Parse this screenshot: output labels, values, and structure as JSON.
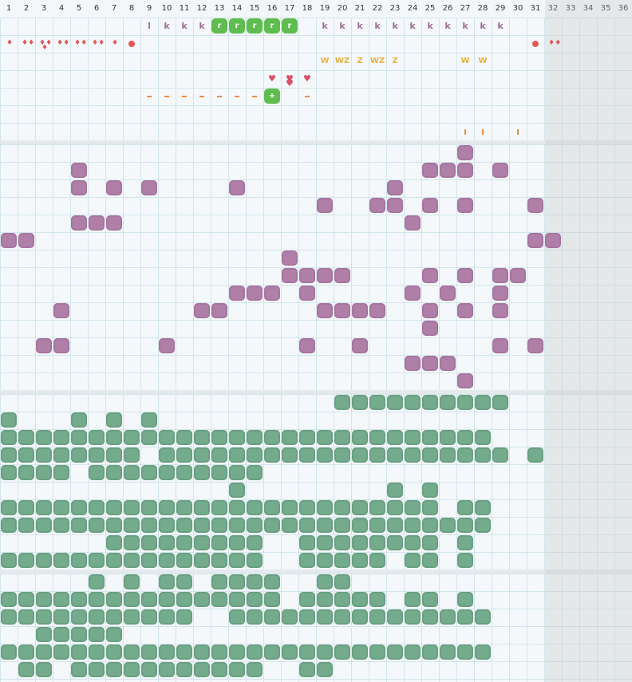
{
  "days": [
    "1",
    "2",
    "3",
    "4",
    "5",
    "6",
    "7",
    "8",
    "9",
    "10",
    "11",
    "12",
    "13",
    "14",
    "15",
    "16",
    "17",
    "18",
    "19",
    "20",
    "21",
    "22",
    "23",
    "24",
    "25",
    "26",
    "27",
    "28",
    "29",
    "30",
    "31",
    "32",
    "33",
    "34",
    "35",
    "36"
  ],
  "shaded_from_day": 32,
  "colors": {
    "purple": "#b07fa8",
    "green": "#74ab8c",
    "tag_green": "#5ebd4e",
    "orange": "#ef8b46",
    "red": "#e35757",
    "yellow": "#e8b23e"
  },
  "header_rows": {
    "k_row": [
      {
        "day": 9,
        "text": "l"
      },
      {
        "day": 10,
        "text": "k"
      },
      {
        "day": 11,
        "text": "k"
      },
      {
        "day": 12,
        "text": "k"
      },
      {
        "day": 19,
        "text": "k"
      },
      {
        "day": 20,
        "text": "k"
      },
      {
        "day": 21,
        "text": "k"
      },
      {
        "day": 22,
        "text": "k"
      },
      {
        "day": 23,
        "text": "k"
      },
      {
        "day": 24,
        "text": "k"
      },
      {
        "day": 25,
        "text": "k"
      },
      {
        "day": 26,
        "text": "k"
      },
      {
        "day": 27,
        "text": "k"
      },
      {
        "day": 28,
        "text": "k"
      },
      {
        "day": 29,
        "text": "k"
      }
    ],
    "r_tags": [
      {
        "day": 13,
        "text": "r"
      },
      {
        "day": 14,
        "text": "r"
      },
      {
        "day": 15,
        "text": "r"
      },
      {
        "day": 16,
        "text": "r"
      },
      {
        "day": 17,
        "text": "r"
      }
    ],
    "drops": [
      {
        "day": 1,
        "count": 1
      },
      {
        "day": 2,
        "count": 2
      },
      {
        "day": 3,
        "count": 3
      },
      {
        "day": 4,
        "count": 2
      },
      {
        "day": 5,
        "count": 2
      },
      {
        "day": 6,
        "count": 2
      },
      {
        "day": 7,
        "count": 1
      },
      {
        "day": 32,
        "count": 2
      }
    ],
    "dots": [
      8,
      31
    ],
    "wz_row": [
      {
        "day": 19,
        "text": "W"
      },
      {
        "day": 20,
        "text": "WZ"
      },
      {
        "day": 21,
        "text": "Z"
      },
      {
        "day": 22,
        "text": "WZ"
      },
      {
        "day": 23,
        "text": "Z"
      },
      {
        "day": 27,
        "text": "W"
      },
      {
        "day": 28,
        "text": "W"
      }
    ],
    "hearts": [
      16,
      17,
      18
    ],
    "dashes": [
      9,
      10,
      11,
      12,
      13,
      14,
      15,
      18
    ],
    "plus_tag": {
      "day": 16,
      "text": "+"
    },
    "ticks": [
      27,
      28,
      30
    ]
  },
  "purple_blocks": [
    [
      27,
      1
    ],
    [
      5,
      2
    ],
    [
      25,
      2
    ],
    [
      26,
      2
    ],
    [
      27,
      2
    ],
    [
      29,
      2
    ],
    [
      5,
      3
    ],
    [
      7,
      3
    ],
    [
      9,
      3
    ],
    [
      14,
      3
    ],
    [
      23,
      3
    ],
    [
      19,
      4
    ],
    [
      22,
      4
    ],
    [
      23,
      4
    ],
    [
      25,
      4
    ],
    [
      27,
      4
    ],
    [
      31,
      4
    ],
    [
      5,
      5
    ],
    [
      6,
      5
    ],
    [
      7,
      5
    ],
    [
      24,
      5
    ],
    [
      1,
      6
    ],
    [
      2,
      6
    ],
    [
      31,
      6
    ],
    [
      32,
      6
    ],
    [
      17,
      7
    ],
    [
      17,
      8
    ],
    [
      18,
      8
    ],
    [
      19,
      8
    ],
    [
      20,
      8
    ],
    [
      25,
      8
    ],
    [
      27,
      8
    ],
    [
      29,
      8
    ],
    [
      30,
      8
    ],
    [
      14,
      9
    ],
    [
      15,
      9
    ],
    [
      16,
      9
    ],
    [
      18,
      9
    ],
    [
      24,
      9
    ],
    [
      26,
      9
    ],
    [
      29,
      9
    ],
    [
      4,
      10
    ],
    [
      12,
      10
    ],
    [
      13,
      10
    ],
    [
      19,
      10
    ],
    [
      20,
      10
    ],
    [
      21,
      10
    ],
    [
      22,
      10
    ],
    [
      25,
      10
    ],
    [
      27,
      10
    ],
    [
      29,
      10
    ],
    [
      25,
      11
    ],
    [
      3,
      12
    ],
    [
      4,
      12
    ],
    [
      10,
      12
    ],
    [
      18,
      12
    ],
    [
      21,
      12
    ],
    [
      29,
      12
    ],
    [
      31,
      12
    ],
    [
      24,
      13
    ],
    [
      25,
      13
    ],
    [
      26,
      13
    ],
    [
      27,
      14
    ]
  ],
  "green_rows_lane3": [
    {
      "row": 0,
      "days": [
        20,
        21,
        22,
        23,
        24,
        25,
        26,
        27,
        28,
        29
      ]
    },
    {
      "row": 1,
      "days": [
        1,
        5,
        7,
        9
      ]
    },
    {
      "row": 2,
      "days": [
        1,
        2,
        3,
        4,
        5,
        6,
        7,
        8,
        9,
        10,
        11,
        12,
        13,
        14,
        15,
        16,
        17,
        18,
        19,
        20,
        21,
        22,
        23,
        24,
        25,
        26,
        27,
        28
      ]
    },
    {
      "row": 3,
      "days": [
        1,
        2,
        3,
        4,
        5,
        6,
        7,
        8,
        10,
        11,
        12,
        13,
        14,
        15,
        16,
        17,
        18,
        19,
        20,
        21,
        22,
        23,
        24,
        25,
        26,
        27,
        28,
        29,
        31
      ]
    },
    {
      "row": 4,
      "days": [
        1,
        2,
        3,
        4,
        6,
        7,
        8,
        9,
        10,
        11,
        12,
        13,
        14,
        15
      ]
    },
    {
      "row": 5,
      "days": [
        14,
        23,
        25
      ]
    },
    {
      "row": 6,
      "days": [
        1,
        2,
        3,
        4,
        5,
        6,
        7,
        8,
        9,
        10,
        11,
        12,
        13,
        14,
        15,
        16,
        17,
        18,
        19,
        20,
        21,
        22,
        23,
        24,
        25,
        27,
        28
      ]
    },
    {
      "row": 7,
      "days": [
        1,
        2,
        3,
        4,
        5,
        6,
        7,
        8,
        9,
        10,
        11,
        12,
        13,
        14,
        15,
        16,
        17,
        18,
        19,
        20,
        21,
        22,
        23,
        24,
        25,
        26,
        27,
        28
      ]
    },
    {
      "row": 8,
      "days": [
        7,
        8,
        9,
        10,
        11,
        12,
        13,
        14,
        15,
        18,
        19,
        20,
        21,
        22,
        23,
        24,
        25,
        27
      ]
    },
    {
      "row": 9,
      "days": [
        1,
        2,
        3,
        4,
        5,
        6,
        7,
        8,
        9,
        10,
        11,
        12,
        13,
        14,
        15,
        18,
        19,
        20,
        21,
        22,
        24,
        25,
        27
      ]
    }
  ],
  "green_rows_lane4": [
    {
      "row": 0,
      "days": [
        6,
        8,
        10,
        11,
        13,
        14,
        15,
        16,
        19,
        20
      ]
    },
    {
      "row": 1,
      "days": [
        1,
        2,
        3,
        4,
        5,
        6,
        7,
        8,
        9,
        10,
        11,
        12,
        13,
        14,
        15,
        16,
        18,
        19,
        20,
        21,
        22,
        24,
        25,
        27
      ]
    },
    {
      "row": 2,
      "days": [
        1,
        2,
        3,
        4,
        5,
        6,
        7,
        8,
        9,
        10,
        11,
        14,
        15,
        16,
        17,
        18,
        19,
        20,
        21,
        22,
        23,
        24,
        25,
        26,
        27,
        28
      ]
    },
    {
      "row": 3,
      "days": [
        3,
        4,
        5,
        6,
        7
      ]
    },
    {
      "row": 4,
      "days": [
        1,
        2,
        3,
        4,
        5,
        6,
        7,
        8,
        9,
        10,
        11,
        12,
        13,
        14,
        15,
        16,
        17,
        18,
        19,
        20,
        21,
        22,
        23,
        24,
        25,
        26,
        27,
        28
      ]
    },
    {
      "row": 5,
      "days": [
        2,
        3,
        5,
        6,
        7,
        8,
        9,
        10,
        11,
        12,
        13,
        14,
        15,
        18,
        19
      ]
    }
  ]
}
